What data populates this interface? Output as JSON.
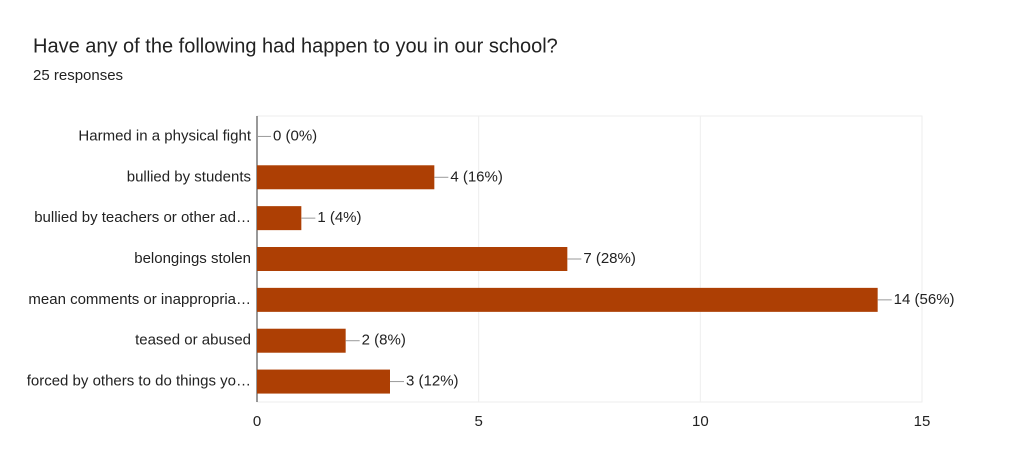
{
  "chart_data": {
    "type": "bar",
    "orientation": "horizontal",
    "title": "Have any of the following had happen to you in our school?",
    "subtitle": "25 responses",
    "categories": [
      "Harmed in a physical fight",
      "bullied by students",
      "bullied by teachers or other ad…",
      "belongings stolen",
      "mean comments or inappropria…",
      "teased or abused",
      "forced by others to do things yo…"
    ],
    "values": [
      0,
      4,
      1,
      7,
      14,
      2,
      3
    ],
    "value_labels": [
      "0 (0%)",
      "4 (16%)",
      "1 (4%)",
      "7 (28%)",
      "14 (56%)",
      "2 (8%)",
      "3 (12%)"
    ],
    "color": "#ad3f04",
    "xlim": [
      0,
      15
    ],
    "xticks": [
      0,
      5,
      10,
      15
    ],
    "grid": true
  }
}
